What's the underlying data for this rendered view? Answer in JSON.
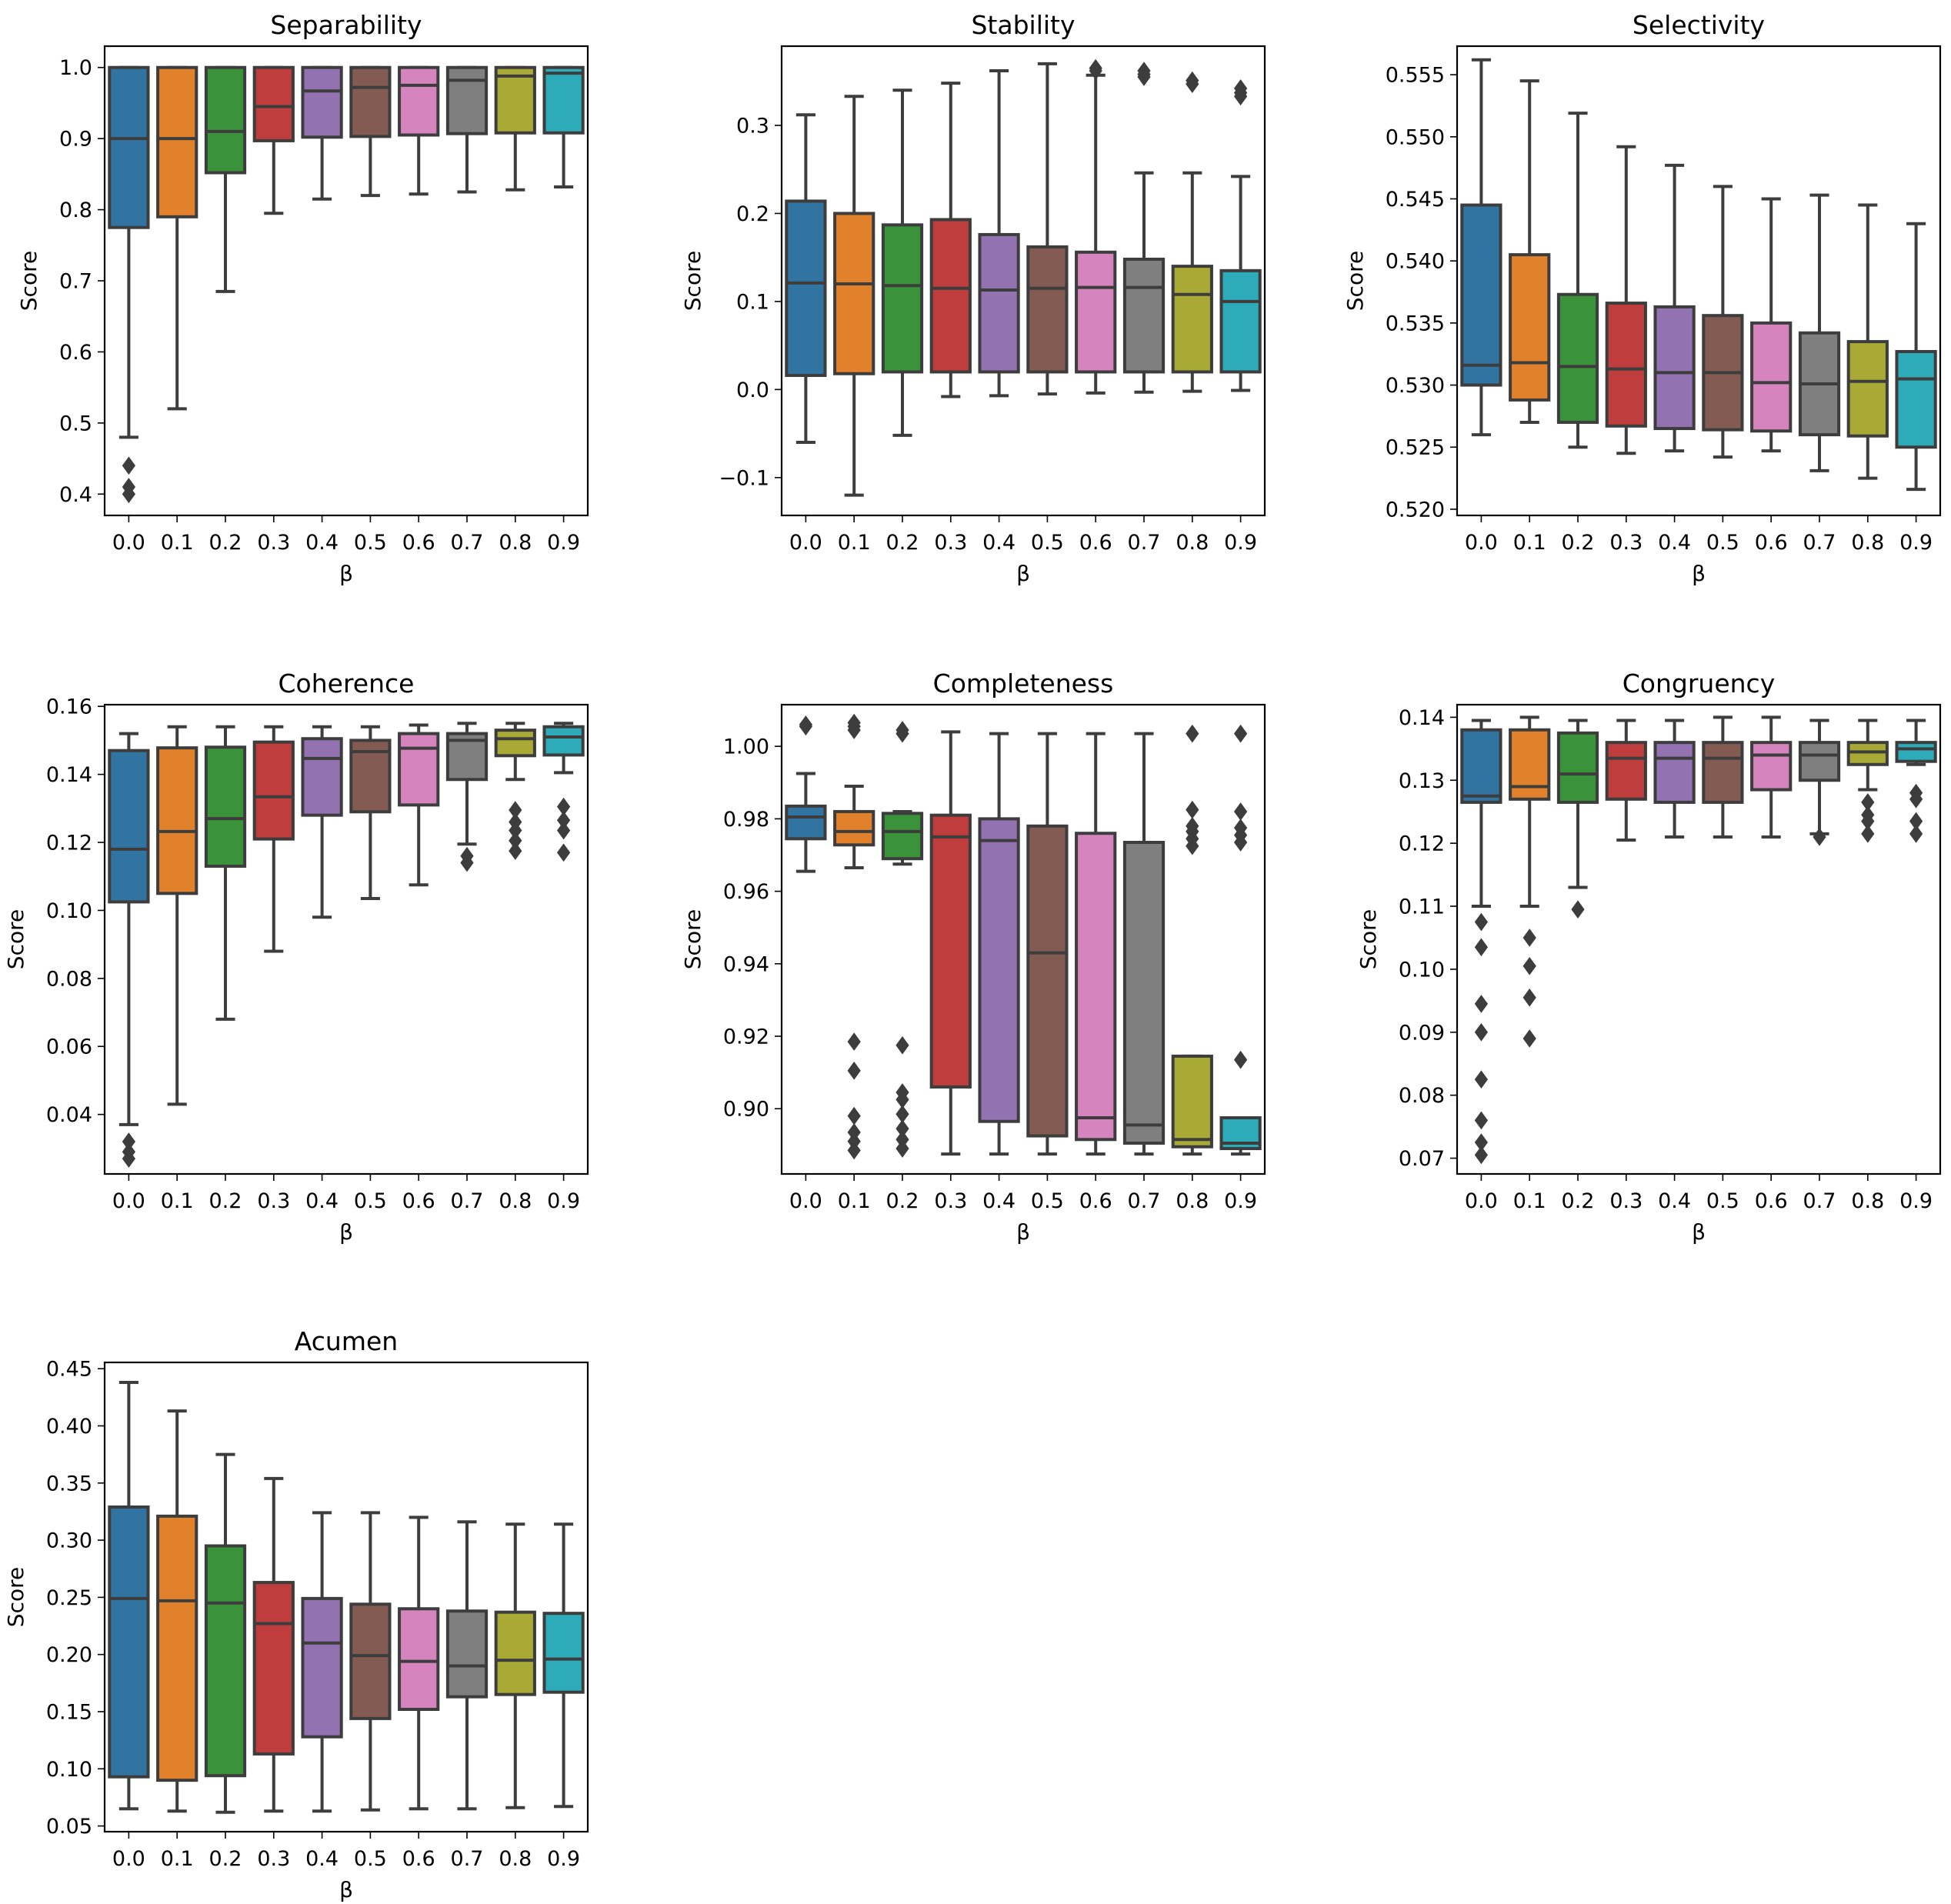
{
  "figure": {
    "background": "#ffffff"
  },
  "style": {
    "palette": [
      "#3274a1",
      "#e1812c",
      "#3a923a",
      "#c03d3e",
      "#9372b2",
      "#845b53",
      "#d684bd",
      "#7f7f7f",
      "#a9aa35",
      "#2eabb8"
    ],
    "line_color": "#3d3d3d"
  },
  "chart_data": [
    {
      "type": "box",
      "title": "Separability",
      "xlabel": "β",
      "ylabel": "Score",
      "categories": [
        "0.0",
        "0.1",
        "0.2",
        "0.3",
        "0.4",
        "0.5",
        "0.6",
        "0.7",
        "0.8",
        "0.9"
      ],
      "yticks": [
        0.4,
        0.5,
        0.6,
        0.7,
        0.8,
        0.9,
        1.0
      ],
      "yticklabels": [
        "0.4",
        "0.5",
        "0.6",
        "0.7",
        "0.8",
        "0.9",
        "1.0"
      ],
      "ylim": [
        0.37,
        1.03
      ],
      "boxes": [
        {
          "whislo": 0.48,
          "q1": 0.775,
          "med": 0.9,
          "q3": 1.0,
          "whishi": 1.0,
          "fliers": [
            0.44,
            0.41,
            0.4
          ]
        },
        {
          "whislo": 0.52,
          "q1": 0.79,
          "med": 0.9,
          "q3": 1.0,
          "whishi": 1.0,
          "fliers": []
        },
        {
          "whislo": 0.685,
          "q1": 0.852,
          "med": 0.91,
          "q3": 1.0,
          "whishi": 1.0,
          "fliers": []
        },
        {
          "whislo": 0.795,
          "q1": 0.897,
          "med": 0.945,
          "q3": 1.0,
          "whishi": 1.0,
          "fliers": []
        },
        {
          "whislo": 0.815,
          "q1": 0.902,
          "med": 0.967,
          "q3": 1.0,
          "whishi": 1.0,
          "fliers": []
        },
        {
          "whislo": 0.82,
          "q1": 0.903,
          "med": 0.972,
          "q3": 1.0,
          "whishi": 1.0,
          "fliers": []
        },
        {
          "whislo": 0.822,
          "q1": 0.905,
          "med": 0.975,
          "q3": 1.0,
          "whishi": 1.0,
          "fliers": []
        },
        {
          "whislo": 0.825,
          "q1": 0.907,
          "med": 0.982,
          "q3": 1.0,
          "whishi": 1.0,
          "fliers": []
        },
        {
          "whislo": 0.828,
          "q1": 0.908,
          "med": 0.988,
          "q3": 1.0,
          "whishi": 1.0,
          "fliers": []
        },
        {
          "whislo": 0.832,
          "q1": 0.908,
          "med": 0.992,
          "q3": 1.0,
          "whishi": 1.0,
          "fliers": []
        }
      ]
    },
    {
      "type": "box",
      "title": "Stability",
      "xlabel": "β",
      "ylabel": "Score",
      "categories": [
        "0.0",
        "0.1",
        "0.2",
        "0.3",
        "0.4",
        "0.5",
        "0.6",
        "0.7",
        "0.8",
        "0.9"
      ],
      "yticks": [
        -0.1,
        0.0,
        0.1,
        0.2,
        0.3
      ],
      "yticklabels": [
        "−0.1",
        "0.0",
        "0.1",
        "0.2",
        "0.3"
      ],
      "ylim": [
        -0.143,
        0.39
      ],
      "boxes": [
        {
          "whislo": -0.06,
          "q1": 0.016,
          "med": 0.121,
          "q3": 0.214,
          "whishi": 0.312,
          "fliers": []
        },
        {
          "whislo": -0.12,
          "q1": 0.018,
          "med": 0.12,
          "q3": 0.2,
          "whishi": 0.333,
          "fliers": []
        },
        {
          "whislo": -0.052,
          "q1": 0.02,
          "med": 0.118,
          "q3": 0.187,
          "whishi": 0.34,
          "fliers": []
        },
        {
          "whislo": -0.008,
          "q1": 0.02,
          "med": 0.115,
          "q3": 0.193,
          "whishi": 0.348,
          "fliers": []
        },
        {
          "whislo": -0.007,
          "q1": 0.02,
          "med": 0.113,
          "q3": 0.176,
          "whishi": 0.362,
          "fliers": []
        },
        {
          "whislo": -0.005,
          "q1": 0.02,
          "med": 0.115,
          "q3": 0.162,
          "whishi": 0.37,
          "fliers": []
        },
        {
          "whislo": -0.004,
          "q1": 0.02,
          "med": 0.116,
          "q3": 0.156,
          "whishi": 0.357,
          "fliers": [
            0.365,
            0.362
          ]
        },
        {
          "whislo": -0.003,
          "q1": 0.02,
          "med": 0.116,
          "q3": 0.148,
          "whishi": 0.246,
          "fliers": [
            0.362,
            0.358,
            0.355
          ]
        },
        {
          "whislo": -0.002,
          "q1": 0.02,
          "med": 0.108,
          "q3": 0.14,
          "whishi": 0.246,
          "fliers": [
            0.351,
            0.347
          ]
        },
        {
          "whislo": -0.001,
          "q1": 0.02,
          "med": 0.1,
          "q3": 0.135,
          "whishi": 0.242,
          "fliers": [
            0.342,
            0.337,
            0.333
          ]
        }
      ]
    },
    {
      "type": "box",
      "title": "Selectivity",
      "xlabel": "β",
      "ylabel": "Score",
      "categories": [
        "0.0",
        "0.1",
        "0.2",
        "0.3",
        "0.4",
        "0.5",
        "0.6",
        "0.7",
        "0.8",
        "0.9"
      ],
      "yticks": [
        0.52,
        0.525,
        0.53,
        0.535,
        0.54,
        0.545,
        0.55,
        0.555
      ],
      "yticklabels": [
        "0.520",
        "0.525",
        "0.530",
        "0.535",
        "0.540",
        "0.545",
        "0.550",
        "0.555"
      ],
      "ylim": [
        0.5195,
        0.5573
      ],
      "boxes": [
        {
          "whislo": 0.526,
          "q1": 0.53,
          "med": 0.5316,
          "q3": 0.5445,
          "whishi": 0.5562,
          "fliers": []
        },
        {
          "whislo": 0.527,
          "q1": 0.5288,
          "med": 0.5318,
          "q3": 0.5405,
          "whishi": 0.5545,
          "fliers": []
        },
        {
          "whislo": 0.525,
          "q1": 0.527,
          "med": 0.5315,
          "q3": 0.5373,
          "whishi": 0.5519,
          "fliers": []
        },
        {
          "whislo": 0.5245,
          "q1": 0.5267,
          "med": 0.5313,
          "q3": 0.5366,
          "whishi": 0.5492,
          "fliers": []
        },
        {
          "whislo": 0.5247,
          "q1": 0.5265,
          "med": 0.531,
          "q3": 0.5363,
          "whishi": 0.5477,
          "fliers": []
        },
        {
          "whislo": 0.5242,
          "q1": 0.5264,
          "med": 0.531,
          "q3": 0.5356,
          "whishi": 0.546,
          "fliers": []
        },
        {
          "whislo": 0.5247,
          "q1": 0.5263,
          "med": 0.5302,
          "q3": 0.535,
          "whishi": 0.545,
          "fliers": []
        },
        {
          "whislo": 0.5231,
          "q1": 0.526,
          "med": 0.5301,
          "q3": 0.5342,
          "whishi": 0.5453,
          "fliers": []
        },
        {
          "whislo": 0.5225,
          "q1": 0.5259,
          "med": 0.5303,
          "q3": 0.5335,
          "whishi": 0.5445,
          "fliers": []
        },
        {
          "whislo": 0.5216,
          "q1": 0.525,
          "med": 0.5305,
          "q3": 0.5327,
          "whishi": 0.543,
          "fliers": []
        }
      ]
    },
    {
      "type": "box",
      "title": "Coherence",
      "xlabel": "β",
      "ylabel": "Score",
      "categories": [
        "0.0",
        "0.1",
        "0.2",
        "0.3",
        "0.4",
        "0.5",
        "0.6",
        "0.7",
        "0.8",
        "0.9"
      ],
      "yticks": [
        0.04,
        0.06,
        0.08,
        0.1,
        0.12,
        0.14,
        0.16
      ],
      "yticklabels": [
        "0.04",
        "0.06",
        "0.08",
        "0.10",
        "0.12",
        "0.14",
        "0.16"
      ],
      "ylim": [
        0.0225,
        0.1605
      ],
      "boxes": [
        {
          "whislo": 0.037,
          "q1": 0.1025,
          "med": 0.118,
          "q3": 0.147,
          "whishi": 0.152,
          "fliers": [
            0.032,
            0.029,
            0.027
          ]
        },
        {
          "whislo": 0.043,
          "q1": 0.105,
          "med": 0.1232,
          "q3": 0.1478,
          "whishi": 0.154,
          "fliers": []
        },
        {
          "whislo": 0.068,
          "q1": 0.113,
          "med": 0.127,
          "q3": 0.148,
          "whishi": 0.154,
          "fliers": []
        },
        {
          "whislo": 0.088,
          "q1": 0.121,
          "med": 0.1334,
          "q3": 0.1495,
          "whishi": 0.154,
          "fliers": []
        },
        {
          "whislo": 0.098,
          "q1": 0.128,
          "med": 0.1447,
          "q3": 0.1505,
          "whishi": 0.154,
          "fliers": []
        },
        {
          "whislo": 0.1035,
          "q1": 0.129,
          "med": 0.1467,
          "q3": 0.15,
          "whishi": 0.154,
          "fliers": []
        },
        {
          "whislo": 0.1075,
          "q1": 0.131,
          "med": 0.1477,
          "q3": 0.152,
          "whishi": 0.1545,
          "fliers": []
        },
        {
          "whislo": 0.1195,
          "q1": 0.1385,
          "med": 0.15,
          "q3": 0.152,
          "whishi": 0.155,
          "fliers": [
            0.116,
            0.114
          ]
        },
        {
          "whislo": 0.1385,
          "q1": 0.1455,
          "med": 0.1505,
          "q3": 0.153,
          "whishi": 0.155,
          "fliers": [
            0.1295,
            0.126,
            0.1235,
            0.1205,
            0.1175
          ]
        },
        {
          "whislo": 0.1405,
          "q1": 0.1457,
          "med": 0.151,
          "q3": 0.154,
          "whishi": 0.155,
          "fliers": [
            0.1305,
            0.1265,
            0.1235,
            0.117
          ]
        }
      ]
    },
    {
      "type": "box",
      "title": "Completeness",
      "xlabel": "β",
      "ylabel": "Score",
      "categories": [
        "0.0",
        "0.1",
        "0.2",
        "0.3",
        "0.4",
        "0.5",
        "0.6",
        "0.7",
        "0.8",
        "0.9"
      ],
      "yticks": [
        0.9,
        0.92,
        0.94,
        0.96,
        0.98,
        1.0
      ],
      "yticklabels": [
        "0.90",
        "0.92",
        "0.94",
        "0.96",
        "0.98",
        "1.00"
      ],
      "ylim": [
        0.882,
        1.0115
      ],
      "boxes": [
        {
          "whislo": 0.9655,
          "q1": 0.9745,
          "med": 0.9805,
          "q3": 0.9835,
          "whishi": 0.9925,
          "fliers": [
            1.006,
            1.0055
          ]
        },
        {
          "whislo": 0.9665,
          "q1": 0.9728,
          "med": 0.9765,
          "q3": 0.982,
          "whishi": 0.989,
          "fliers": [
            1.0065,
            1.0055,
            1.0045,
            0.9185,
            0.9105,
            0.898,
            0.8935,
            0.891,
            0.8885
          ]
        },
        {
          "whislo": 0.9675,
          "q1": 0.969,
          "med": 0.9765,
          "q3": 0.9815,
          "whishi": 0.982,
          "fliers": [
            1.0045,
            1.0035,
            0.9175,
            0.9045,
            0.9025,
            0.8985,
            0.8945,
            0.8915,
            0.889
          ]
        },
        {
          "whislo": 0.8875,
          "q1": 0.906,
          "med": 0.975,
          "q3": 0.981,
          "whishi": 1.004,
          "fliers": []
        },
        {
          "whislo": 0.8875,
          "q1": 0.8965,
          "med": 0.974,
          "q3": 0.98,
          "whishi": 1.0035,
          "fliers": []
        },
        {
          "whislo": 0.8875,
          "q1": 0.8925,
          "med": 0.943,
          "q3": 0.978,
          "whishi": 1.0035,
          "fliers": []
        },
        {
          "whislo": 0.8875,
          "q1": 0.8915,
          "med": 0.8975,
          "q3": 0.976,
          "whishi": 1.0035,
          "fliers": []
        },
        {
          "whislo": 0.8875,
          "q1": 0.8905,
          "med": 0.8955,
          "q3": 0.9735,
          "whishi": 1.0035,
          "fliers": []
        },
        {
          "whislo": 0.8875,
          "q1": 0.8895,
          "med": 0.8915,
          "q3": 0.9145,
          "whishi": 0.9145,
          "fliers": [
            1.0035,
            0.9825,
            0.978,
            0.9765,
            0.9745,
            0.9725
          ]
        },
        {
          "whislo": 0.8875,
          "q1": 0.889,
          "med": 0.8905,
          "q3": 0.8975,
          "whishi": 0.8975,
          "fliers": [
            1.0035,
            0.982,
            0.9775,
            0.9755,
            0.9735,
            0.9135
          ]
        }
      ]
    },
    {
      "type": "box",
      "title": "Congruency",
      "xlabel": "β",
      "ylabel": "Score",
      "categories": [
        "0.0",
        "0.1",
        "0.2",
        "0.3",
        "0.4",
        "0.5",
        "0.6",
        "0.7",
        "0.8",
        "0.9"
      ],
      "yticks": [
        0.07,
        0.08,
        0.09,
        0.1,
        0.11,
        0.12,
        0.13,
        0.14
      ],
      "yticklabels": [
        "0.07",
        "0.08",
        "0.09",
        "0.10",
        "0.11",
        "0.12",
        "0.13",
        "0.14"
      ],
      "ylim": [
        0.0675,
        0.142
      ],
      "boxes": [
        {
          "whislo": 0.11,
          "q1": 0.1265,
          "med": 0.1275,
          "q3": 0.138,
          "whishi": 0.1395,
          "fliers": [
            0.1075,
            0.1035,
            0.0945,
            0.09,
            0.0825,
            0.076,
            0.0725,
            0.0705
          ]
        },
        {
          "whislo": 0.11,
          "q1": 0.127,
          "med": 0.129,
          "q3": 0.138,
          "whishi": 0.14,
          "fliers": [
            0.105,
            0.1005,
            0.0955,
            0.089
          ]
        },
        {
          "whislo": 0.113,
          "q1": 0.1265,
          "med": 0.131,
          "q3": 0.1375,
          "whishi": 0.1395,
          "fliers": [
            0.1095
          ]
        },
        {
          "whislo": 0.1205,
          "q1": 0.127,
          "med": 0.1335,
          "q3": 0.136,
          "whishi": 0.1395,
          "fliers": []
        },
        {
          "whislo": 0.121,
          "q1": 0.1265,
          "med": 0.1335,
          "q3": 0.136,
          "whishi": 0.1395,
          "fliers": []
        },
        {
          "whislo": 0.121,
          "q1": 0.1265,
          "med": 0.1335,
          "q3": 0.136,
          "whishi": 0.14,
          "fliers": []
        },
        {
          "whislo": 0.121,
          "q1": 0.1285,
          "med": 0.134,
          "q3": 0.136,
          "whishi": 0.14,
          "fliers": []
        },
        {
          "whislo": 0.1215,
          "q1": 0.13,
          "med": 0.134,
          "q3": 0.136,
          "whishi": 0.1395,
          "fliers": [
            0.121
          ]
        },
        {
          "whislo": 0.1285,
          "q1": 0.1325,
          "med": 0.1345,
          "q3": 0.136,
          "whishi": 0.1395,
          "fliers": [
            0.1265,
            0.1245,
            0.1235,
            0.1215
          ]
        },
        {
          "whislo": 0.1325,
          "q1": 0.133,
          "med": 0.135,
          "q3": 0.136,
          "whishi": 0.1395,
          "fliers": [
            0.128,
            0.127,
            0.1235,
            0.1215
          ]
        }
      ]
    },
    {
      "type": "box",
      "title": "Acumen",
      "xlabel": "β",
      "ylabel": "Score",
      "categories": [
        "0.0",
        "0.1",
        "0.2",
        "0.3",
        "0.4",
        "0.5",
        "0.6",
        "0.7",
        "0.8",
        "0.9"
      ],
      "yticks": [
        0.05,
        0.1,
        0.15,
        0.2,
        0.25,
        0.3,
        0.35,
        0.4,
        0.45
      ],
      "yticklabels": [
        "0.05",
        "0.10",
        "0.15",
        "0.20",
        "0.25",
        "0.30",
        "0.35",
        "0.40",
        "0.45"
      ],
      "ylim": [
        0.045,
        0.4555
      ],
      "boxes": [
        {
          "whislo": 0.065,
          "q1": 0.093,
          "med": 0.249,
          "q3": 0.329,
          "whishi": 0.438,
          "fliers": []
        },
        {
          "whislo": 0.063,
          "q1": 0.09,
          "med": 0.247,
          "q3": 0.321,
          "whishi": 0.413,
          "fliers": []
        },
        {
          "whislo": 0.062,
          "q1": 0.094,
          "med": 0.245,
          "q3": 0.295,
          "whishi": 0.375,
          "fliers": []
        },
        {
          "whislo": 0.063,
          "q1": 0.113,
          "med": 0.227,
          "q3": 0.263,
          "whishi": 0.354,
          "fliers": []
        },
        {
          "whislo": 0.063,
          "q1": 0.128,
          "med": 0.21,
          "q3": 0.249,
          "whishi": 0.324,
          "fliers": []
        },
        {
          "whislo": 0.064,
          "q1": 0.144,
          "med": 0.199,
          "q3": 0.244,
          "whishi": 0.324,
          "fliers": []
        },
        {
          "whislo": 0.065,
          "q1": 0.152,
          "med": 0.194,
          "q3": 0.24,
          "whishi": 0.32,
          "fliers": []
        },
        {
          "whislo": 0.065,
          "q1": 0.163,
          "med": 0.19,
          "q3": 0.238,
          "whishi": 0.316,
          "fliers": []
        },
        {
          "whislo": 0.066,
          "q1": 0.165,
          "med": 0.195,
          "q3": 0.237,
          "whishi": 0.314,
          "fliers": []
        },
        {
          "whislo": 0.067,
          "q1": 0.167,
          "med": 0.196,
          "q3": 0.236,
          "whishi": 0.314,
          "fliers": []
        }
      ]
    }
  ]
}
